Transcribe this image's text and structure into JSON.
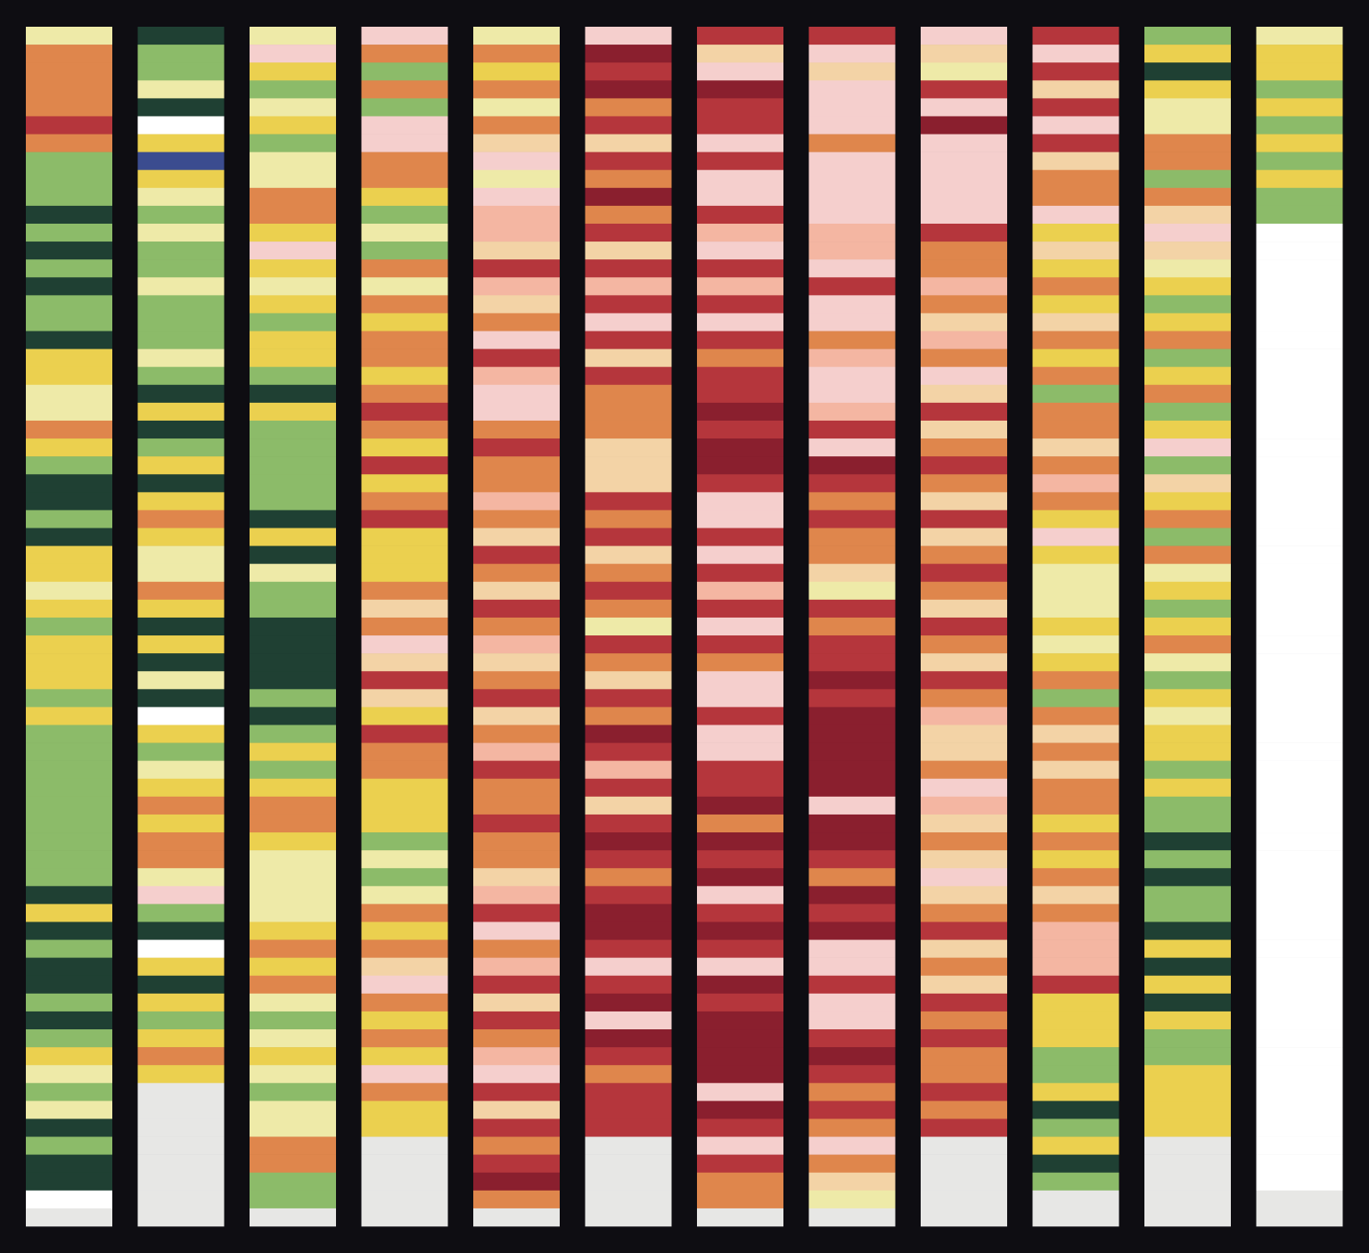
{
  "columns": [
    {
      "stripes": [
        "#eeeaa8",
        "#df864c",
        "#df864c",
        "#df864c",
        "#df864c",
        "#b5363c",
        "#df864c",
        "#8cbb69",
        "#8cbb69",
        "#8cbb69",
        "#1f4033",
        "#8cbb69",
        "#1f4033",
        "#8cbb69",
        "#1f4033",
        "#8cbb69",
        "#8cbb69",
        "#1f4033",
        "#ebd04f",
        "#ebd04f",
        "#eeeaa8",
        "#eeeaa8",
        "#df864c",
        "#ebd04f",
        "#8cbb69",
        "#1f4033",
        "#1f4033",
        "#8cbb69",
        "#1f4033",
        "#ebd04f",
        "#ebd04f",
        "#eeeaa8",
        "#ebd04f",
        "#8cbb69",
        "#ebd04f",
        "#ebd04f",
        "#ebd04f",
        "#8cbb69",
        "#ebd04f",
        "#8cbb69",
        "#8cbb69",
        "#8cbb69",
        "#8cbb69",
        "#8cbb69",
        "#8cbb69",
        "#8cbb69",
        "#8cbb69",
        "#8cbb69",
        "#1f4033",
        "#ebd04f",
        "#1f4033",
        "#8cbb69",
        "#1f4033",
        "#1f4033",
        "#8cbb69",
        "#1f4033",
        "#8cbb69",
        "#ebd04f",
        "#eeeaa8",
        "#8cbb69",
        "#eeeaa8",
        "#1f4033",
        "#8cbb69",
        "#1f4033",
        "#1f4033",
        "#ffffff",
        "#e7e7e5"
      ]
    },
    {
      "stripes": [
        "#1f4033",
        "#8cbb69",
        "#8cbb69",
        "#eeeaa8",
        "#1f4033",
        "#ffffff",
        "#ebd04f",
        "#3b4c8f",
        "#ebd04f",
        "#eeeaa8",
        "#8cbb69",
        "#eeeaa8",
        "#8cbb69",
        "#8cbb69",
        "#eeeaa8",
        "#8cbb69",
        "#8cbb69",
        "#8cbb69",
        "#eeeaa8",
        "#8cbb69",
        "#1f4033",
        "#ebd04f",
        "#1f4033",
        "#8cbb69",
        "#ebd04f",
        "#1f4033",
        "#ebd04f",
        "#df864c",
        "#ebd04f",
        "#eeeaa8",
        "#eeeaa8",
        "#df864c",
        "#ebd04f",
        "#1f4033",
        "#ebd04f",
        "#1f4033",
        "#eeeaa8",
        "#1f4033",
        "#ffffff",
        "#ebd04f",
        "#8cbb69",
        "#eeeaa8",
        "#ebd04f",
        "#df864c",
        "#ebd04f",
        "#df864c",
        "#df864c",
        "#eeeaa8",
        "#f5cfcd",
        "#8cbb69",
        "#1f4033",
        "#ffffff",
        "#ebd04f",
        "#1f4033",
        "#ebd04f",
        "#8cbb69",
        "#ebd04f",
        "#df864c",
        "#ebd04f",
        "#e7e7e5",
        "#e7e7e5",
        "#e7e7e5",
        "#e7e7e5",
        "#e7e7e5",
        "#e7e7e5",
        "#e7e7e5",
        "#e7e7e5"
      ]
    },
    {
      "stripes": [
        "#eeeaa8",
        "#f5cfcd",
        "#ebd04f",
        "#8cbb69",
        "#eeeaa8",
        "#ebd04f",
        "#8cbb69",
        "#eeeaa8",
        "#eeeaa8",
        "#df864c",
        "#df864c",
        "#ebd04f",
        "#f5cfcd",
        "#ebd04f",
        "#eeeaa8",
        "#ebd04f",
        "#8cbb69",
        "#ebd04f",
        "#ebd04f",
        "#8cbb69",
        "#1f4033",
        "#ebd04f",
        "#8cbb69",
        "#8cbb69",
        "#8cbb69",
        "#8cbb69",
        "#8cbb69",
        "#1f4033",
        "#ebd04f",
        "#1f4033",
        "#eeeaa8",
        "#8cbb69",
        "#8cbb69",
        "#1f4033",
        "#1f4033",
        "#1f4033",
        "#1f4033",
        "#8cbb69",
        "#1f4033",
        "#8cbb69",
        "#ebd04f",
        "#8cbb69",
        "#ebd04f",
        "#df864c",
        "#df864c",
        "#ebd04f",
        "#eeeaa8",
        "#eeeaa8",
        "#eeeaa8",
        "#eeeaa8",
        "#ebd04f",
        "#df864c",
        "#ebd04f",
        "#df864c",
        "#eeeaa8",
        "#8cbb69",
        "#eeeaa8",
        "#ebd04f",
        "#eeeaa8",
        "#8cbb69",
        "#eeeaa8",
        "#eeeaa8",
        "#df864c",
        "#df864c",
        "#8cbb69",
        "#8cbb69",
        "#e7e7e5"
      ]
    },
    {
      "stripes": [
        "#f5cfcd",
        "#df864c",
        "#8cbb69",
        "#df864c",
        "#8cbb69",
        "#f5cfcd",
        "#f5cfcd",
        "#df864c",
        "#df864c",
        "#ebd04f",
        "#8cbb69",
        "#eeeaa8",
        "#8cbb69",
        "#df864c",
        "#eeeaa8",
        "#df864c",
        "#ebd04f",
        "#df864c",
        "#df864c",
        "#ebd04f",
        "#df864c",
        "#b5363c",
        "#df864c",
        "#ebd04f",
        "#b5363c",
        "#ebd04f",
        "#df864c",
        "#b5363c",
        "#ebd04f",
        "#ebd04f",
        "#ebd04f",
        "#df864c",
        "#f3d3a6",
        "#df864c",
        "#f5cfcd",
        "#f3d3a6",
        "#b5363c",
        "#f3d3a6",
        "#ebd04f",
        "#b5363c",
        "#df864c",
        "#df864c",
        "#ebd04f",
        "#ebd04f",
        "#ebd04f",
        "#8cbb69",
        "#eeeaa8",
        "#8cbb69",
        "#eeeaa8",
        "#df864c",
        "#ebd04f",
        "#df864c",
        "#f3d3a6",
        "#f5cfcd",
        "#df864c",
        "#ebd04f",
        "#df864c",
        "#ebd04f",
        "#f5cfcd",
        "#df864c",
        "#ebd04f",
        "#ebd04f",
        "#e7e7e5",
        "#e7e7e5",
        "#e7e7e5",
        "#e7e7e5",
        "#e7e7e5"
      ]
    },
    {
      "stripes": [
        "#eeeaa8",
        "#df864c",
        "#ebd04f",
        "#df864c",
        "#eeeaa8",
        "#df864c",
        "#f3d3a6",
        "#f5cfcd",
        "#eeeaa8",
        "#f5cfcd",
        "#f4b6a2",
        "#f4b6a2",
        "#f3d3a6",
        "#b5363c",
        "#f4b6a2",
        "#f3d3a6",
        "#df864c",
        "#f5cfcd",
        "#b5363c",
        "#f4b6a2",
        "#f5cfcd",
        "#f5cfcd",
        "#df864c",
        "#b5363c",
        "#df864c",
        "#df864c",
        "#f4b6a2",
        "#df864c",
        "#f3d3a6",
        "#b5363c",
        "#df864c",
        "#f3d3a6",
        "#b5363c",
        "#df864c",
        "#f4b6a2",
        "#f3d3a6",
        "#df864c",
        "#b5363c",
        "#f3d3a6",
        "#df864c",
        "#f4b6a2",
        "#b5363c",
        "#df864c",
        "#df864c",
        "#b5363c",
        "#df864c",
        "#df864c",
        "#f3d3a6",
        "#f4b6a2",
        "#b5363c",
        "#f5cfcd",
        "#df864c",
        "#f4b6a2",
        "#b5363c",
        "#f3d3a6",
        "#b5363c",
        "#df864c",
        "#f4b6a2",
        "#f5cfcd",
        "#b5363c",
        "#f3d3a6",
        "#b5363c",
        "#df864c",
        "#b5363c",
        "#8a1f2e",
        "#df864c",
        "#e7e7e5"
      ]
    },
    {
      "stripes": [
        "#f5cfcd",
        "#8a1f2e",
        "#b5363c",
        "#8a1f2e",
        "#df864c",
        "#b5363c",
        "#f3d3a6",
        "#b5363c",
        "#df864c",
        "#8a1f2e",
        "#df864c",
        "#b5363c",
        "#f3d3a6",
        "#b5363c",
        "#f4b6a2",
        "#b5363c",
        "#f5cfcd",
        "#b5363c",
        "#f3d3a6",
        "#b5363c",
        "#df864c",
        "#df864c",
        "#df864c",
        "#f3d3a6",
        "#f3d3a6",
        "#f3d3a6",
        "#b5363c",
        "#df864c",
        "#b5363c",
        "#f3d3a6",
        "#df864c",
        "#b5363c",
        "#df864c",
        "#eeeaa8",
        "#b5363c",
        "#df864c",
        "#f3d3a6",
        "#b5363c",
        "#df864c",
        "#8a1f2e",
        "#b5363c",
        "#f4b6a2",
        "#b5363c",
        "#f3d3a6",
        "#b5363c",
        "#8a1f2e",
        "#b5363c",
        "#df864c",
        "#b5363c",
        "#8a1f2e",
        "#8a1f2e",
        "#b5363c",
        "#f5cfcd",
        "#b5363c",
        "#8a1f2e",
        "#f5cfcd",
        "#8a1f2e",
        "#b5363c",
        "#df864c",
        "#b5363c",
        "#b5363c",
        "#b5363c",
        "#e7e7e5",
        "#e7e7e5",
        "#e7e7e5",
        "#e7e7e5",
        "#e7e7e5"
      ]
    },
    {
      "stripes": [
        "#b5363c",
        "#f3d3a6",
        "#f5cfcd",
        "#8a1f2e",
        "#b5363c",
        "#b5363c",
        "#f5cfcd",
        "#b5363c",
        "#f5cfcd",
        "#f5cfcd",
        "#b5363c",
        "#f4b6a2",
        "#f5cfcd",
        "#b5363c",
        "#f4b6a2",
        "#b5363c",
        "#f5cfcd",
        "#b5363c",
        "#df864c",
        "#b5363c",
        "#b5363c",
        "#8a1f2e",
        "#b5363c",
        "#8a1f2e",
        "#8a1f2e",
        "#b5363c",
        "#f5cfcd",
        "#f5cfcd",
        "#b5363c",
        "#f5cfcd",
        "#b5363c",
        "#f4b6a2",
        "#b5363c",
        "#f5cfcd",
        "#b5363c",
        "#df864c",
        "#f5cfcd",
        "#f5cfcd",
        "#b5363c",
        "#f5cfcd",
        "#f5cfcd",
        "#b5363c",
        "#b5363c",
        "#8a1f2e",
        "#df864c",
        "#8a1f2e",
        "#b5363c",
        "#8a1f2e",
        "#f5cfcd",
        "#b5363c",
        "#8a1f2e",
        "#b5363c",
        "#f5cfcd",
        "#8a1f2e",
        "#b5363c",
        "#8a1f2e",
        "#8a1f2e",
        "#8a1f2e",
        "#8a1f2e",
        "#f5cfcd",
        "#8a1f2e",
        "#b5363c",
        "#f5cfcd",
        "#b5363c",
        "#df864c",
        "#df864c",
        "#e7e7e5"
      ]
    },
    {
      "stripes": [
        "#b5363c",
        "#f5cfcd",
        "#f3d3a6",
        "#f5cfcd",
        "#f5cfcd",
        "#f5cfcd",
        "#df864c",
        "#f5cfcd",
        "#f5cfcd",
        "#f5cfcd",
        "#f5cfcd",
        "#f4b6a2",
        "#f4b6a2",
        "#f5cfcd",
        "#b5363c",
        "#f5cfcd",
        "#f5cfcd",
        "#df864c",
        "#f4b6a2",
        "#f5cfcd",
        "#f5cfcd",
        "#f4b6a2",
        "#b5363c",
        "#f5cfcd",
        "#8a1f2e",
        "#b5363c",
        "#df864c",
        "#b5363c",
        "#df864c",
        "#df864c",
        "#f3d3a6",
        "#eeeaa8",
        "#b5363c",
        "#df864c",
        "#b5363c",
        "#b5363c",
        "#8a1f2e",
        "#b5363c",
        "#8a1f2e",
        "#8a1f2e",
        "#8a1f2e",
        "#8a1f2e",
        "#8a1f2e",
        "#f5cfcd",
        "#8a1f2e",
        "#8a1f2e",
        "#b5363c",
        "#df864c",
        "#8a1f2e",
        "#b5363c",
        "#8a1f2e",
        "#f5cfcd",
        "#f5cfcd",
        "#b5363c",
        "#f5cfcd",
        "#f5cfcd",
        "#b5363c",
        "#8a1f2e",
        "#b5363c",
        "#df864c",
        "#b5363c",
        "#df864c",
        "#f5cfcd",
        "#df864c",
        "#f3d3a6",
        "#eeeaa8",
        "#e7e7e5"
      ]
    },
    {
      "stripes": [
        "#f5cfcd",
        "#f3d3a6",
        "#eeeaa8",
        "#b5363c",
        "#f5cfcd",
        "#8a1f2e",
        "#f5cfcd",
        "#f5cfcd",
        "#f5cfcd",
        "#f5cfcd",
        "#f5cfcd",
        "#b5363c",
        "#df864c",
        "#df864c",
        "#f4b6a2",
        "#df864c",
        "#f3d3a6",
        "#f4b6a2",
        "#df864c",
        "#f5cfcd",
        "#f3d3a6",
        "#b5363c",
        "#f3d3a6",
        "#df864c",
        "#b5363c",
        "#df864c",
        "#f3d3a6",
        "#b5363c",
        "#f3d3a6",
        "#df864c",
        "#b5363c",
        "#df864c",
        "#f3d3a6",
        "#b5363c",
        "#df864c",
        "#f3d3a6",
        "#b5363c",
        "#df864c",
        "#f4b6a2",
        "#f3d3a6",
        "#f3d3a6",
        "#df864c",
        "#f5cfcd",
        "#f4b6a2",
        "#f3d3a6",
        "#df864c",
        "#f3d3a6",
        "#f5cfcd",
        "#f3d3a6",
        "#df864c",
        "#b5363c",
        "#f3d3a6",
        "#df864c",
        "#f3d3a6",
        "#b5363c",
        "#df864c",
        "#b5363c",
        "#df864c",
        "#df864c",
        "#b5363c",
        "#df864c",
        "#b5363c",
        "#e7e7e5",
        "#e7e7e5",
        "#e7e7e5",
        "#e7e7e5",
        "#e7e7e5"
      ]
    },
    {
      "stripes": [
        "#b5363c",
        "#f5cfcd",
        "#b5363c",
        "#f3d3a6",
        "#b5363c",
        "#f5cfcd",
        "#b5363c",
        "#f3d3a6",
        "#df864c",
        "#df864c",
        "#f5cfcd",
        "#ebd04f",
        "#f3d3a6",
        "#ebd04f",
        "#df864c",
        "#ebd04f",
        "#f3d3a6",
        "#df864c",
        "#ebd04f",
        "#df864c",
        "#8cbb69",
        "#df864c",
        "#df864c",
        "#f3d3a6",
        "#df864c",
        "#f4b6a2",
        "#df864c",
        "#ebd04f",
        "#f5cfcd",
        "#ebd04f",
        "#eeeaa8",
        "#eeeaa8",
        "#eeeaa8",
        "#ebd04f",
        "#eeeaa8",
        "#ebd04f",
        "#df864c",
        "#8cbb69",
        "#df864c",
        "#f3d3a6",
        "#df864c",
        "#f3d3a6",
        "#df864c",
        "#df864c",
        "#ebd04f",
        "#df864c",
        "#ebd04f",
        "#df864c",
        "#f3d3a6",
        "#df864c",
        "#f4b6a2",
        "#f4b6a2",
        "#f4b6a2",
        "#b5363c",
        "#ebd04f",
        "#ebd04f",
        "#ebd04f",
        "#8cbb69",
        "#8cbb69",
        "#ebd04f",
        "#1f4033",
        "#8cbb69",
        "#ebd04f",
        "#1f4033",
        "#8cbb69",
        "#e7e7e5",
        "#e7e7e5"
      ]
    },
    {
      "stripes": [
        "#8cbb69",
        "#ebd04f",
        "#1f4033",
        "#ebd04f",
        "#eeeaa8",
        "#eeeaa8",
        "#df864c",
        "#df864c",
        "#8cbb69",
        "#df864c",
        "#f3d3a6",
        "#f5cfcd",
        "#f3d3a6",
        "#eeeaa8",
        "#ebd04f",
        "#8cbb69",
        "#ebd04f",
        "#df864c",
        "#8cbb69",
        "#ebd04f",
        "#df864c",
        "#8cbb69",
        "#ebd04f",
        "#f5cfcd",
        "#8cbb69",
        "#f3d3a6",
        "#ebd04f",
        "#df864c",
        "#8cbb69",
        "#df864c",
        "#eeeaa8",
        "#ebd04f",
        "#8cbb69",
        "#ebd04f",
        "#df864c",
        "#eeeaa8",
        "#8cbb69",
        "#ebd04f",
        "#eeeaa8",
        "#ebd04f",
        "#ebd04f",
        "#8cbb69",
        "#ebd04f",
        "#8cbb69",
        "#8cbb69",
        "#1f4033",
        "#8cbb69",
        "#1f4033",
        "#8cbb69",
        "#8cbb69",
        "#1f4033",
        "#ebd04f",
        "#1f4033",
        "#ebd04f",
        "#1f4033",
        "#ebd04f",
        "#8cbb69",
        "#8cbb69",
        "#ebd04f",
        "#ebd04f",
        "#ebd04f",
        "#ebd04f",
        "#e7e7e5",
        "#e7e7e5",
        "#e7e7e5",
        "#e7e7e5",
        "#e7e7e5"
      ]
    },
    {
      "stripes": [
        "#eeeaa8",
        "#ebd04f",
        "#ebd04f",
        "#8cbb69",
        "#ebd04f",
        "#8cbb69",
        "#ebd04f",
        "#8cbb69",
        "#ebd04f",
        "#8cbb69",
        "#8cbb69",
        "#ffffff",
        "#ffffff",
        "#ffffff",
        "#ffffff",
        "#ffffff",
        "#ffffff",
        "#ffffff",
        "#ffffff",
        "#ffffff",
        "#ffffff",
        "#ffffff",
        "#ffffff",
        "#ffffff",
        "#ffffff",
        "#ffffff",
        "#ffffff",
        "#ffffff",
        "#ffffff",
        "#ffffff",
        "#ffffff",
        "#ffffff",
        "#ffffff",
        "#ffffff",
        "#ffffff",
        "#ffffff",
        "#ffffff",
        "#ffffff",
        "#ffffff",
        "#ffffff",
        "#ffffff",
        "#ffffff",
        "#ffffff",
        "#ffffff",
        "#ffffff",
        "#ffffff",
        "#ffffff",
        "#ffffff",
        "#ffffff",
        "#ffffff",
        "#ffffff",
        "#ffffff",
        "#ffffff",
        "#ffffff",
        "#ffffff",
        "#ffffff",
        "#ffffff",
        "#ffffff",
        "#ffffff",
        "#ffffff",
        "#ffffff",
        "#ffffff",
        "#ffffff",
        "#ffffff",
        "#ffffff",
        "#e7e7e5",
        "#e7e7e5"
      ]
    }
  ]
}
